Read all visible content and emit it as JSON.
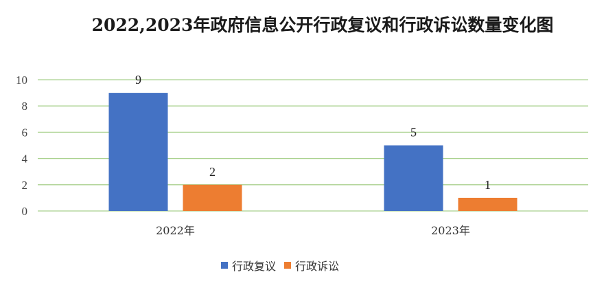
{
  "chart_data": {
    "type": "bar",
    "title": "2022,2023年政府信息公开行政复议和行政诉讼数量变化图",
    "categories": [
      "2022年",
      "2023年"
    ],
    "series": [
      {
        "name": "行政复议",
        "values": [
          9,
          5
        ],
        "color": "#4472C4"
      },
      {
        "name": "行政诉讼",
        "values": [
          2,
          1
        ],
        "color": "#ED7D31"
      }
    ],
    "yticks": [
      "0",
      "2",
      "4",
      "6",
      "8",
      "10"
    ],
    "ylim": [
      0,
      10
    ],
    "grid": true,
    "gridline_color": "#A9D18E",
    "legend_position": "bottom"
  }
}
